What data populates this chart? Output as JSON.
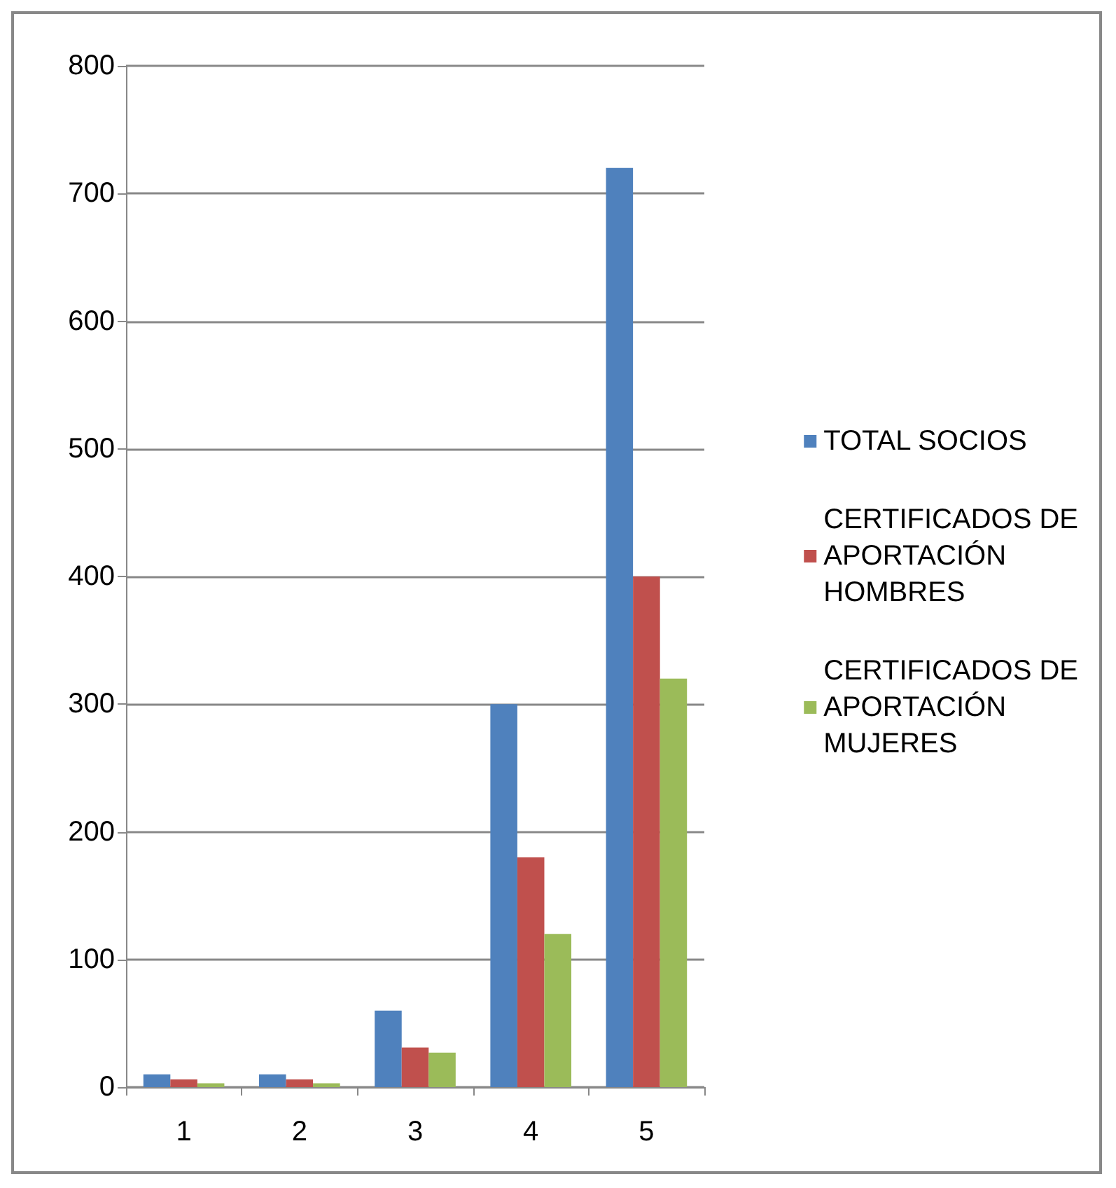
{
  "chart_data": {
    "type": "bar",
    "categories": [
      "1",
      "2",
      "3",
      "4",
      "5"
    ],
    "series": [
      {
        "name": "TOTAL SOCIOS",
        "color": "#4f81bd",
        "values": [
          10,
          10,
          60,
          300,
          720
        ]
      },
      {
        "name": "CERTIFICADOS DE APORTACIÓN HOMBRES",
        "color": "#c0504d",
        "values": [
          6,
          6,
          31,
          180,
          400
        ]
      },
      {
        "name": "CERTIFICADOS DE APORTACIÓN MUJERES",
        "color": "#9bbb59",
        "values": [
          3,
          3,
          27,
          120,
          320
        ]
      }
    ],
    "ylim": [
      0,
      800
    ],
    "yticks": [
      0,
      100,
      200,
      300,
      400,
      500,
      600,
      700,
      800
    ],
    "grid": "y",
    "legend": "right"
  }
}
